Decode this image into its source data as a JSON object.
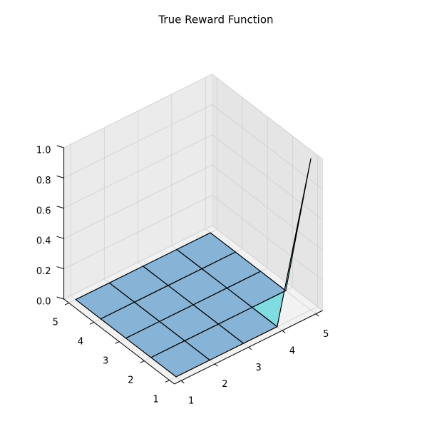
{
  "chart_data": {
    "type": "surface3d",
    "title": "True Reward Function",
    "x": [
      1,
      2,
      3,
      4,
      5
    ],
    "y": [
      1,
      2,
      3,
      4,
      5
    ],
    "z": [
      [
        0,
        0,
        0,
        0,
        1
      ],
      [
        0,
        0,
        0,
        0,
        0
      ],
      [
        0,
        0,
        0,
        0,
        0
      ],
      [
        0,
        0,
        0,
        0,
        0
      ],
      [
        0,
        0,
        0,
        0,
        0
      ]
    ],
    "xlim": [
      0.8,
      5.2
    ],
    "ylim": [
      0.8,
      5.2
    ],
    "zlim": [
      0,
      1
    ],
    "xticks": [
      1,
      2,
      3,
      4,
      5
    ],
    "yticks": [
      1,
      2,
      3,
      4,
      5
    ],
    "zticks": [
      {
        "value": 0,
        "label": "0.0"
      },
      {
        "value": 0.2,
        "label": "0.2"
      },
      {
        "value": 0.4,
        "label": "0.4"
      },
      {
        "value": 0.6,
        "label": "0.6"
      },
      {
        "value": 0.8,
        "label": "0.8"
      },
      {
        "value": 1,
        "label": "1.0"
      }
    ],
    "color": "#86b3d6",
    "grid": true
  }
}
